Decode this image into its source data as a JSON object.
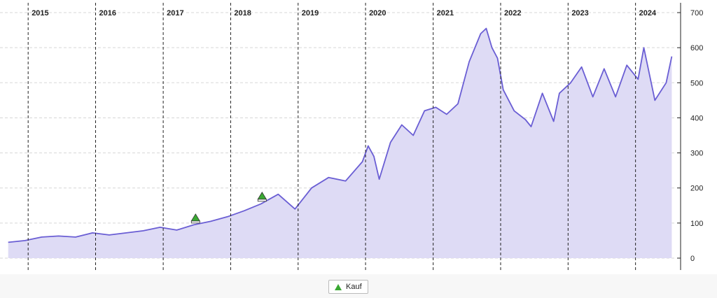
{
  "colors": {
    "line": "#6a5ed4",
    "fill": "#dedbf5",
    "buy_marker": "#3aa832",
    "grid": "#d7d7d7",
    "year_line": "#222222"
  },
  "legend": {
    "buy_label": "Kauf",
    "buy_icon": "green-triangle-up-icon"
  },
  "chart_data": {
    "type": "area",
    "x_axis": "date",
    "year_labels": [
      "2015",
      "2016",
      "2017",
      "2018",
      "2019",
      "2020",
      "2021",
      "2022",
      "2023",
      "2024"
    ],
    "y_ticks": [
      0,
      100,
      200,
      300,
      400,
      500,
      600,
      700
    ],
    "ylim": [
      0,
      720
    ],
    "xlim": [
      "2014-09-01",
      "2024-07-25"
    ],
    "grid": true,
    "legend_position": "bottom-center",
    "series": [
      {
        "x": [
          "2014-09",
          "2014-12",
          "2015-03",
          "2015-06",
          "2015-09",
          "2015-12",
          "2016-03",
          "2016-06",
          "2016-09",
          "2016-12",
          "2017-03",
          "2017-06",
          "2017-09",
          "2017-12",
          "2018-03",
          "2018-06",
          "2018-09",
          "2018-12",
          "2019-03",
          "2019-06",
          "2019-09",
          "2019-12",
          "2020-01",
          "2020-02",
          "2020-03",
          "2020-05",
          "2020-07",
          "2020-09",
          "2020-11",
          "2021-01",
          "2021-03",
          "2021-05",
          "2021-07",
          "2021-09",
          "2021-10",
          "2021-11",
          "2021-12",
          "2022-01",
          "2022-03",
          "2022-05",
          "2022-06",
          "2022-08",
          "2022-10",
          "2022-11",
          "2023-01",
          "2023-03",
          "2023-05",
          "2023-07",
          "2023-09",
          "2023-11",
          "2024-01",
          "2024-02",
          "2024-04",
          "2024-06",
          "2024-07"
        ],
        "y": [
          45,
          50,
          60,
          63,
          60,
          72,
          66,
          72,
          78,
          88,
          80,
          95,
          105,
          118,
          135,
          155,
          182,
          140,
          200,
          230,
          220,
          275,
          320,
          290,
          225,
          330,
          380,
          350,
          420,
          430,
          410,
          440,
          560,
          640,
          655,
          600,
          570,
          480,
          420,
          395,
          375,
          470,
          390,
          470,
          500,
          545,
          460,
          540,
          460,
          550,
          510,
          600,
          450,
          500,
          575
        ]
      }
    ],
    "annotations": [
      {
        "type": "buy",
        "x": "2017-06-25",
        "y": 110
      },
      {
        "type": "buy",
        "x": "2018-06-20",
        "y": 172
      }
    ]
  }
}
